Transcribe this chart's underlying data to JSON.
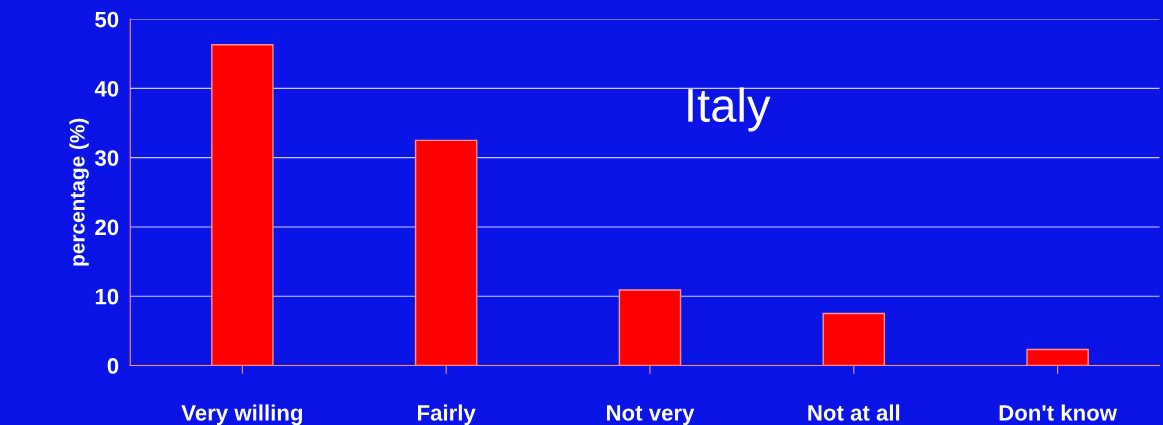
{
  "chart_data": {
    "type": "bar",
    "title": "Italy",
    "ylabel": "percentage (%)",
    "categories": [
      "Very willing",
      "Fairly",
      "Not very",
      "Not at all",
      "Don't know"
    ],
    "values": [
      46.3,
      32.5,
      10.9,
      7.5,
      2.3
    ],
    "color": "#ff0000",
    "ylim": [
      0,
      50
    ],
    "yticks": [
      0,
      10,
      20,
      30,
      40,
      50
    ],
    "grid": "y"
  }
}
